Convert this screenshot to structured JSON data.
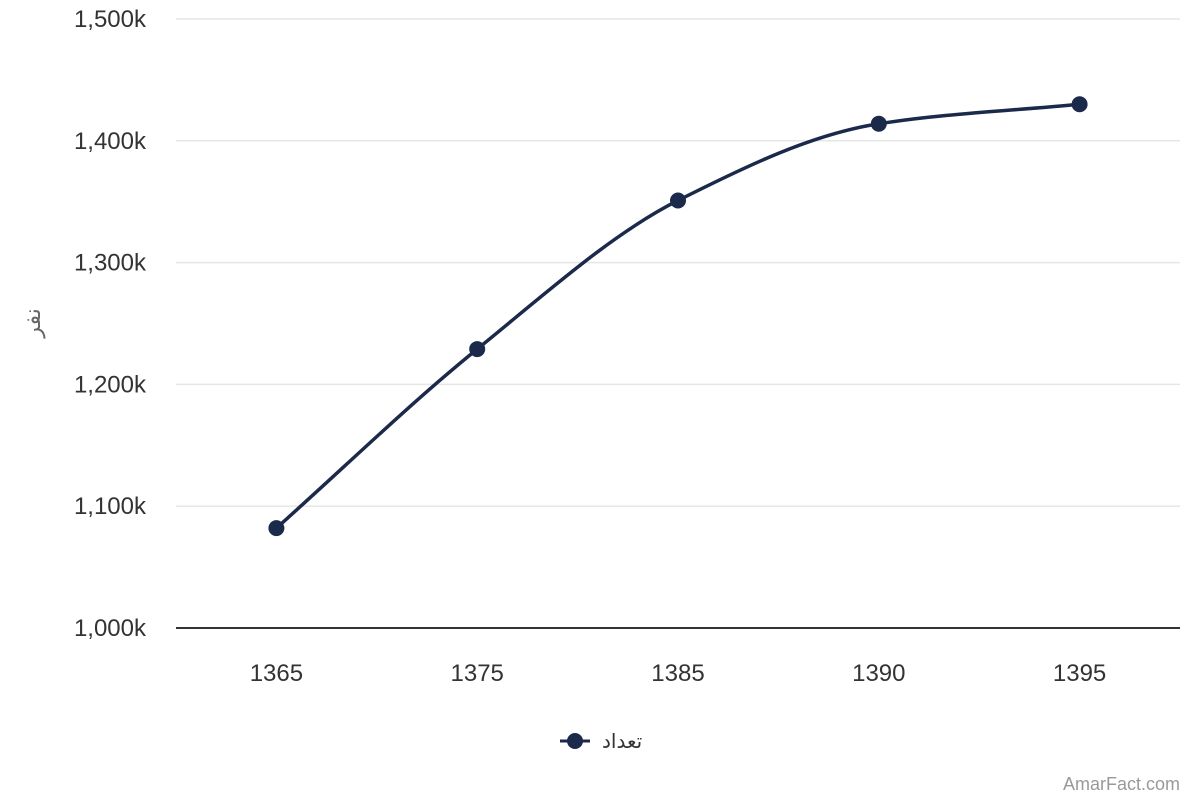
{
  "chart_data": {
    "type": "line",
    "categories": [
      "1365",
      "1375",
      "1385",
      "1390",
      "1395"
    ],
    "series": [
      {
        "name": "تعداد",
        "values": [
          1082,
          1229,
          1351,
          1414,
          1430
        ],
        "color": "#1b2a4a"
      }
    ],
    "ylabel": "نفر",
    "ylim": [
      1000,
      1500
    ],
    "yticks": [
      1000,
      1100,
      1200,
      1300,
      1400,
      1500
    ],
    "ytick_labels": [
      "1,000k",
      "1,100k",
      "1,200k",
      "1,300k",
      "1,400k",
      "1,500k"
    ],
    "grid": true,
    "legend_position": "bottom-center",
    "colors": {
      "line": "#1b2a4a",
      "grid": "#e6e6e6",
      "axis": "#333333"
    }
  },
  "credit": "AmarFact.com"
}
